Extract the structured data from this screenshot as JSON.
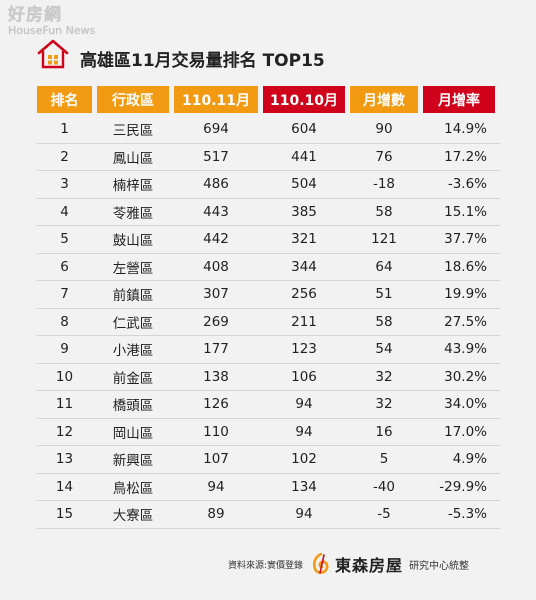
{
  "watermark": {
    "cn": "好房網",
    "en": "HouseFun News"
  },
  "title": "高雄區11月交易量排名 TOP15",
  "table": {
    "headers": [
      "排名",
      "行政區",
      "110.11月",
      "110.10月",
      "月增數",
      "月增率"
    ],
    "header_colors": {
      "orange": "#f29a12",
      "red": "#d0021b"
    },
    "rows": [
      [
        "1",
        "三民區",
        "694",
        "604",
        "90",
        "14.9%"
      ],
      [
        "2",
        "鳳山區",
        "517",
        "441",
        "76",
        "17.2%"
      ],
      [
        "3",
        "楠梓區",
        "486",
        "504",
        "-18",
        "-3.6%"
      ],
      [
        "4",
        "苓雅區",
        "443",
        "385",
        "58",
        "15.1%"
      ],
      [
        "5",
        "鼓山區",
        "442",
        "321",
        "121",
        "37.7%"
      ],
      [
        "6",
        "左營區",
        "408",
        "344",
        "64",
        "18.6%"
      ],
      [
        "7",
        "前鎮區",
        "307",
        "256",
        "51",
        "19.9%"
      ],
      [
        "8",
        "仁武區",
        "269",
        "211",
        "58",
        "27.5%"
      ],
      [
        "9",
        "小港區",
        "177",
        "123",
        "54",
        "43.9%"
      ],
      [
        "10",
        "前金區",
        "138",
        "106",
        "32",
        "30.2%"
      ],
      [
        "11",
        "橋頭區",
        "126",
        "94",
        "32",
        "34.0%"
      ],
      [
        "12",
        "岡山區",
        "110",
        "94",
        "16",
        "17.0%"
      ],
      [
        "13",
        "新興區",
        "107",
        "102",
        "5",
        "4.9%"
      ],
      [
        "14",
        "鳥松區",
        "94",
        "134",
        "-40",
        "-29.9%"
      ],
      [
        "15",
        "大寮區",
        "89",
        "94",
        "-5",
        "-5.3%"
      ]
    ]
  },
  "footer": {
    "source": "資料來源:實價登錄",
    "brand": "東森房屋",
    "compiled": "研究中心統整"
  }
}
